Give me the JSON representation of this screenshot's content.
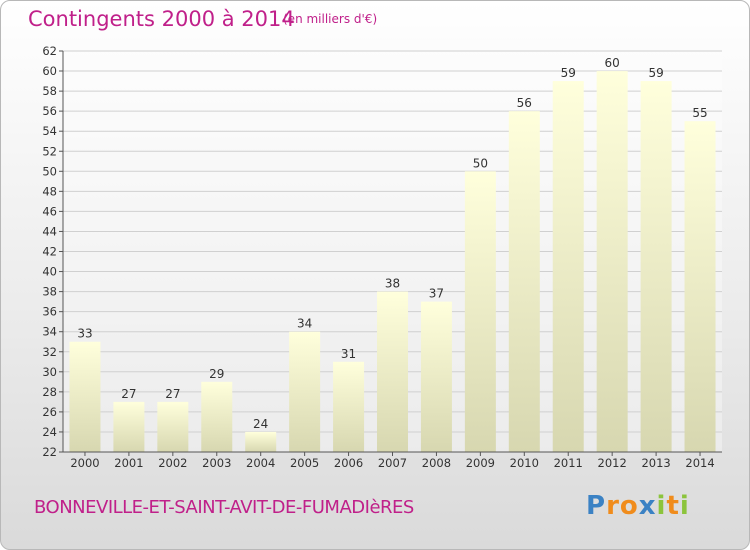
{
  "title": "Contingents 2000 à 2014",
  "subtitle": "(en milliers d'€)",
  "place_name": "BONNEVILLE-ET-SAINT-AVIT-DE-FUMADIèRES",
  "logo": {
    "text": "Proxiti",
    "letter_colors": [
      "#3b82c4",
      "#f08c1c",
      "#f08c1c",
      "#3b82c4",
      "#8cc43c",
      "#f08c1c",
      "#8cc43c"
    ]
  },
  "chart_data": {
    "type": "bar",
    "title": "Contingents 2000 à 2014",
    "subtitle": "(en milliers d'€)",
    "categories": [
      "2000",
      "2001",
      "2002",
      "2003",
      "2004",
      "2005",
      "2006",
      "2007",
      "2008",
      "2009",
      "2010",
      "2011",
      "2012",
      "2013",
      "2014"
    ],
    "values": [
      33,
      27,
      27,
      29,
      24,
      34,
      31,
      38,
      37,
      50,
      56,
      59,
      60,
      59,
      55
    ],
    "ylim": [
      22,
      62
    ],
    "ytick_step": 2,
    "grid": true,
    "bar_color_top": "#ffffdc",
    "bar_color_bottom": "#d7d7b0",
    "grid_color": "#d0d0d0",
    "accent_color": "#c0208a"
  }
}
